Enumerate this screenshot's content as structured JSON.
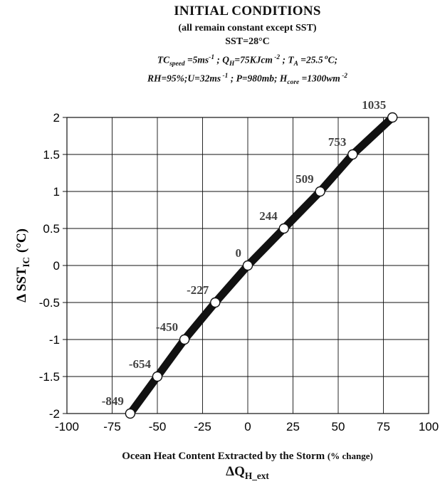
{
  "header": {
    "title": "INITIAL CONDITIONS",
    "subtitle": "(all remain constant except SST)",
    "sst": "SST=28°C",
    "cond1": {
      "tc": "TC",
      "tc_sub": "speed",
      "tc_val": " =5ms",
      "tc_sup": "-1",
      "q": " ; Q",
      "q_sub": "H",
      "q_val": "=75KJcm",
      "q_sup": " -2",
      "ta": " ; T",
      "ta_sub": "A",
      "ta_val": " =25.5",
      "ta_sup": " o",
      "ta_end": "C;"
    },
    "cond2": {
      "rh": "RH=95%;U=32ms",
      "u_sup": " -1",
      "p": " ; P=980mb; H",
      "h_sub": "core",
      "h_val": " =1300wm",
      "h_sup": " -2"
    }
  },
  "chart_data": {
    "type": "line",
    "xlabel": "Ocean Heat Content Extracted by the Storm",
    "xlabel_unit": "(% change)",
    "xlabel_symbol": "ΔQ",
    "xlabel_symbol_sub": "H_ext",
    "ylabel": "Δ SST",
    "ylabel_sub": "IC",
    "ylabel_unit": "(°C)",
    "xlim": [
      -100,
      100
    ],
    "ylim": [
      -2,
      2
    ],
    "xticks": [
      "-100",
      "-75",
      "-50",
      "-25",
      "0",
      "25",
      "50",
      "75",
      "100"
    ],
    "yticks": [
      "-2",
      "-1.5",
      "-1",
      "-0.5",
      "0",
      "0.5",
      "1",
      "1.5",
      "2"
    ],
    "grid": true,
    "series": [
      {
        "x": [
          -65,
          -50,
          -35,
          -18,
          0,
          20,
          40,
          58,
          80
        ],
        "y": [
          -2,
          -1.5,
          -1,
          -0.5,
          0,
          0.5,
          1,
          1.5,
          2
        ],
        "labels": [
          "-849",
          "-654",
          "-450",
          "-227",
          "0",
          "244",
          "509",
          "753",
          "1035"
        ]
      }
    ]
  }
}
